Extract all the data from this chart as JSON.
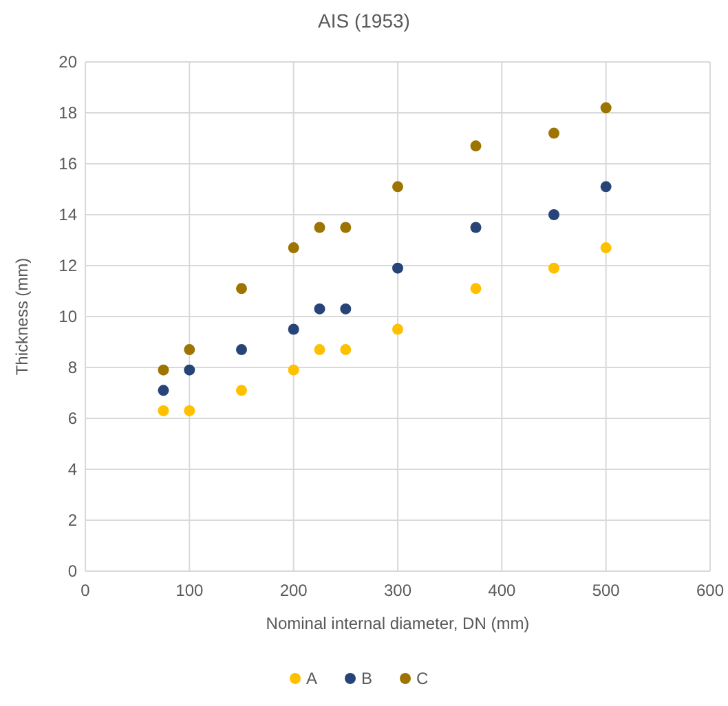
{
  "chart_data": {
    "type": "scatter",
    "title": "AIS (1953)",
    "xlabel": "Nominal internal diameter, DN (mm)",
    "ylabel": "Thickness (mm)",
    "x": [
      75,
      100,
      150,
      200,
      225,
      250,
      300,
      375,
      450,
      500
    ],
    "series": [
      {
        "name": "A",
        "color": "#ffc000",
        "values": [
          6.3,
          6.3,
          7.1,
          7.9,
          8.7,
          8.7,
          9.5,
          11.1,
          11.9,
          12.7
        ]
      },
      {
        "name": "B",
        "color": "#264478",
        "values": [
          7.1,
          7.9,
          8.7,
          9.5,
          10.3,
          10.3,
          11.9,
          13.5,
          14.0,
          15.1
        ]
      },
      {
        "name": "C",
        "color": "#9e7400",
        "values": [
          7.9,
          8.7,
          11.1,
          12.7,
          13.5,
          13.5,
          15.1,
          16.7,
          17.2,
          18.2
        ]
      }
    ],
    "xlim": [
      0,
      600
    ],
    "xticks": [
      0,
      100,
      200,
      300,
      400,
      500,
      600
    ],
    "ylim": [
      0,
      20
    ],
    "yticks": [
      0,
      2,
      4,
      6,
      8,
      10,
      12,
      14,
      16,
      18,
      20
    ],
    "grid": true,
    "legend": "bottom",
    "marker": "circle"
  }
}
